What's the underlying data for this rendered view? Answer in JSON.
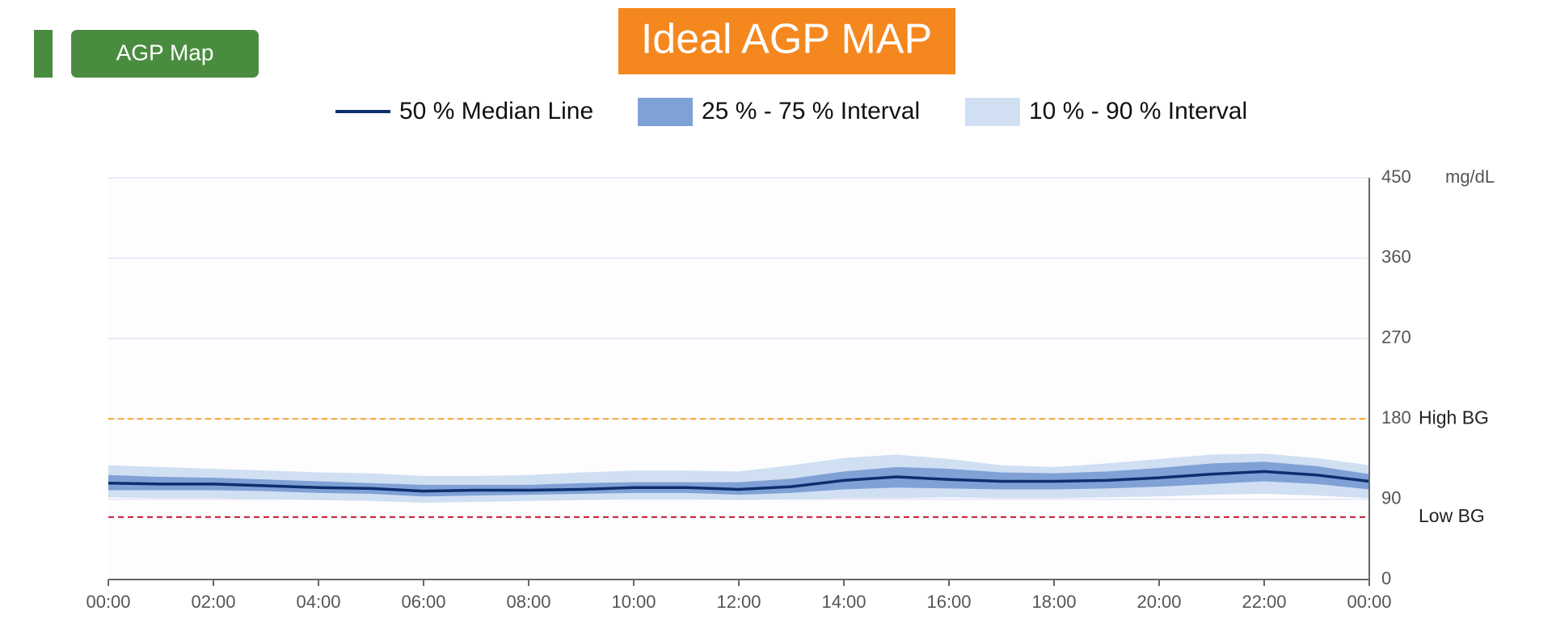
{
  "header": {
    "button": "AGP Map"
  },
  "chart_data": {
    "type": "agp",
    "title": "Ideal AGP MAP",
    "y_unit": "mg/dL",
    "x": [
      0,
      1,
      2,
      3,
      4,
      5,
      6,
      7,
      8,
      9,
      10,
      11,
      12,
      13,
      14,
      15,
      16,
      17,
      18,
      19,
      20,
      21,
      22,
      23,
      24
    ],
    "xlim": [
      0,
      24
    ],
    "xticks": [
      {
        "value": 0,
        "label": "00:00"
      },
      {
        "value": 2,
        "label": "02:00"
      },
      {
        "value": 4,
        "label": "04:00"
      },
      {
        "value": 6,
        "label": "06:00"
      },
      {
        "value": 8,
        "label": "08:00"
      },
      {
        "value": 10,
        "label": "10:00"
      },
      {
        "value": 12,
        "label": "12:00"
      },
      {
        "value": 14,
        "label": "14:00"
      },
      {
        "value": 16,
        "label": "16:00"
      },
      {
        "value": 18,
        "label": "18:00"
      },
      {
        "value": 20,
        "label": "20:00"
      },
      {
        "value": 22,
        "label": "22:00"
      },
      {
        "value": 24,
        "label": "00:00"
      }
    ],
    "ylim": [
      0,
      450
    ],
    "yticks": [
      0,
      90,
      180,
      270,
      360,
      450
    ],
    "grid": true,
    "thresholds": [
      {
        "value": 180,
        "label": "High BG",
        "color": "#f5a623"
      },
      {
        "value": 70,
        "label": "Low BG",
        "color": "#c8102e"
      }
    ],
    "series": [
      {
        "name": "50 % Median Line",
        "color": "#0d2f6e",
        "values": [
          108,
          107,
          107,
          105,
          103,
          102,
          99,
          100,
          100,
          101,
          103,
          103,
          101,
          104,
          111,
          115,
          112,
          110,
          110,
          111,
          114,
          118,
          121,
          117,
          110
        ]
      },
      {
        "name": "25 % - 75 % Interval",
        "color": "#7fa1d6",
        "low": [
          100,
          100,
          100,
          99,
          97,
          96,
          93,
          94,
          95,
          96,
          97,
          97,
          95,
          97,
          101,
          103,
          102,
          101,
          101,
          102,
          104,
          107,
          110,
          107,
          101
        ],
        "high": [
          117,
          115,
          114,
          112,
          110,
          108,
          106,
          106,
          106,
          108,
          109,
          109,
          109,
          113,
          121,
          126,
          124,
          120,
          119,
          121,
          125,
          130,
          132,
          127,
          118
        ]
      },
      {
        "name": "10 % - 90 % Interval",
        "color": "#d0dff2",
        "low": [
          92,
          91,
          91,
          90,
          89,
          88,
          86,
          87,
          88,
          89,
          90,
          90,
          89,
          90,
          91,
          91,
          92,
          91,
          91,
          92,
          93,
          95,
          96,
          94,
          91
        ],
        "high": [
          128,
          126,
          124,
          122,
          120,
          119,
          116,
          116,
          117,
          120,
          122,
          122,
          121,
          128,
          136,
          140,
          135,
          128,
          126,
          130,
          135,
          140,
          141,
          136,
          128
        ]
      }
    ]
  }
}
